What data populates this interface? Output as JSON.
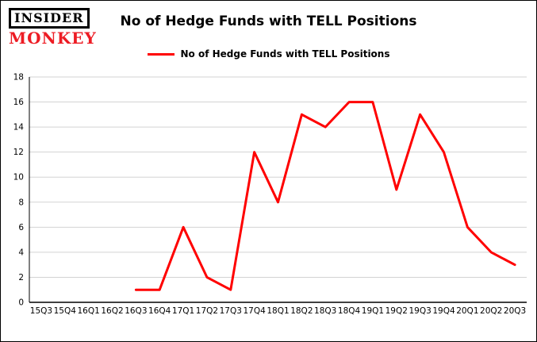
{
  "logo": {
    "line1": "INSIDER",
    "line2": "MONKEY"
  },
  "title": "No of Hedge Funds with TELL Positions",
  "legend": {
    "label": "No of Hedge Funds with TELL Positions"
  },
  "colors": {
    "line": "#ff0000",
    "grid": "#d3d3d3",
    "axis": "#000000",
    "logo_red": "#ed1c24"
  },
  "chart_data": {
    "type": "line",
    "title": "No of Hedge Funds with TELL Positions",
    "categories": [
      "15Q3",
      "15Q4",
      "16Q1",
      "16Q2",
      "16Q3",
      "16Q4",
      "17Q1",
      "17Q2",
      "17Q3",
      "17Q4",
      "18Q1",
      "18Q2",
      "18Q3",
      "18Q4",
      "19Q1",
      "19Q2",
      "19Q3",
      "19Q4",
      "20Q1",
      "20Q2",
      "20Q3"
    ],
    "series": [
      {
        "name": "No of Hedge Funds with TELL Positions",
        "color": "#ff0000",
        "values": [
          null,
          null,
          null,
          null,
          1,
          1,
          6,
          2,
          1,
          12,
          8,
          15,
          14,
          16,
          16,
          9,
          15,
          12,
          6,
          4,
          3
        ]
      }
    ],
    "xlabel": "",
    "ylabel": "",
    "ylim": [
      0,
      18
    ],
    "ytick_step": 2,
    "grid": true,
    "legend_position": "top"
  }
}
